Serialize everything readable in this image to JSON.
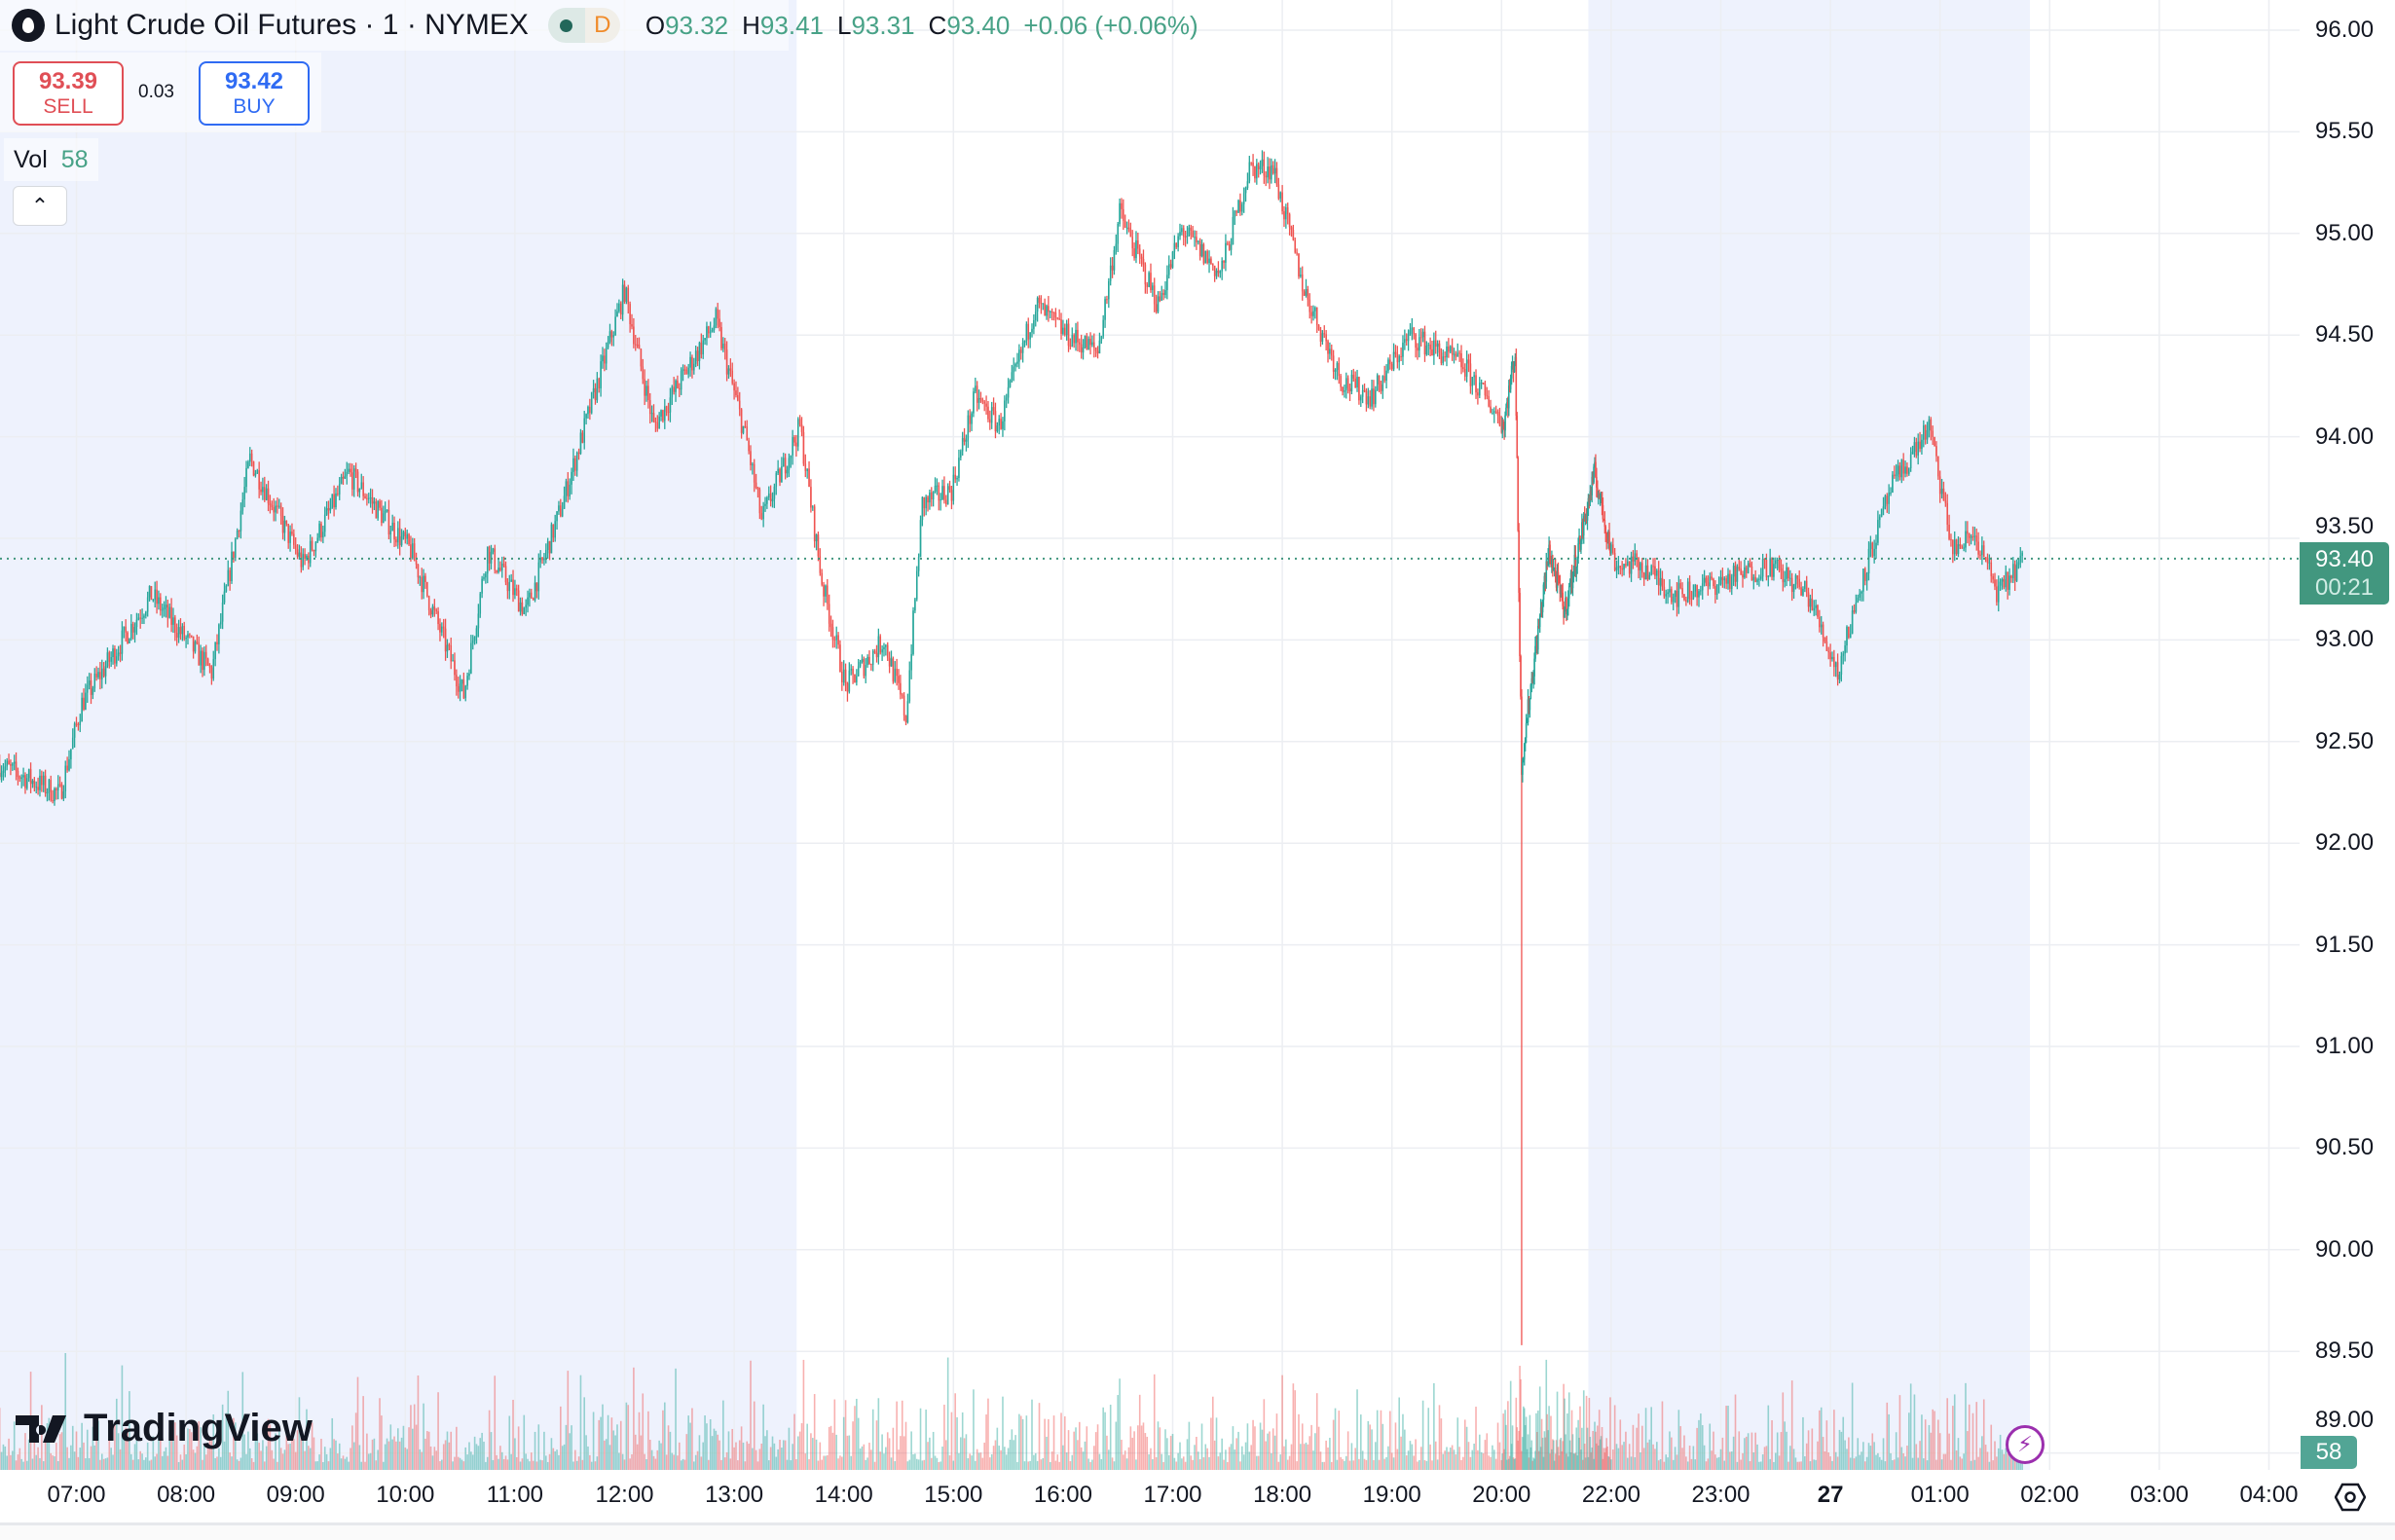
{
  "header": {
    "symbol_title": "Light Crude Oil Futures · 1 · NYMEX",
    "status_letter": "D",
    "ohlc": {
      "o_label": "O",
      "o": "93.32",
      "h_label": "H",
      "h": "93.41",
      "l_label": "L",
      "l": "93.31",
      "c_label": "C",
      "c": "93.40",
      "change": "+0.06 (+0.06%)"
    }
  },
  "trade": {
    "sell_price": "93.39",
    "sell_label": "SELL",
    "spread": "0.03",
    "buy_price": "93.42",
    "buy_label": "BUY"
  },
  "volume_legend": {
    "label": "Vol",
    "value": "58"
  },
  "collapse_icon": "chevron-up-icon",
  "price_axis": [
    "96.00",
    "95.50",
    "95.00",
    "94.50",
    "94.00",
    "93.50",
    "93.00",
    "92.50",
    "92.00",
    "91.50",
    "91.00",
    "90.50",
    "90.00",
    "89.50",
    "89.00"
  ],
  "time_axis": [
    "07:00",
    "08:00",
    "09:00",
    "10:00",
    "11:00",
    "12:00",
    "13:00",
    "14:00",
    "15:00",
    "16:00",
    "17:00",
    "18:00",
    "19:00",
    "20:00",
    "22:00",
    "23:00",
    "27",
    "01:00",
    "02:00",
    "03:00",
    "04:00"
  ],
  "last_price": {
    "price": "93.40",
    "countdown": "00:21"
  },
  "last_volume": "58",
  "branding": "TradingView",
  "colors": {
    "up": "#26a69a",
    "down": "#ef5350",
    "session_shade": "#eef2fd",
    "last_price": "#42977f"
  },
  "chart_data": {
    "type": "candlestick",
    "interval": "1 minute",
    "ylim": [
      89.0,
      96.0
    ],
    "grid": true,
    "path": [
      [
        "06:18",
        92.39
      ],
      [
        "06:52",
        92.24
      ],
      [
        "07:04",
        92.69
      ],
      [
        "07:42",
        93.22
      ],
      [
        "08:15",
        92.84
      ],
      [
        "08:36",
        93.89
      ],
      [
        "09:05",
        93.37
      ],
      [
        "09:30",
        93.82
      ],
      [
        "10:04",
        93.44
      ],
      [
        "10:33",
        92.73
      ],
      [
        "10:46",
        93.44
      ],
      [
        "11:07",
        93.14
      ],
      [
        "11:27",
        93.67
      ],
      [
        "12:01",
        94.72
      ],
      [
        "12:17",
        94.05
      ],
      [
        "12:51",
        94.57
      ],
      [
        "13:08",
        93.97
      ],
      [
        "13:16",
        93.59
      ],
      [
        "13:37",
        94.05
      ],
      [
        "13:49",
        93.29
      ],
      [
        "14:02",
        92.77
      ],
      [
        "14:23",
        93.0
      ],
      [
        "14:35",
        92.62
      ],
      [
        "14:44",
        93.67
      ],
      [
        "15:00",
        93.74
      ],
      [
        "15:13",
        94.2
      ],
      [
        "15:26",
        94.05
      ],
      [
        "15:46",
        94.65
      ],
      [
        "16:03",
        94.5
      ],
      [
        "16:20",
        94.42
      ],
      [
        "16:32",
        95.1
      ],
      [
        "16:53",
        94.65
      ],
      [
        "17:06",
        95.02
      ],
      [
        "17:27",
        94.8
      ],
      [
        "17:43",
        95.32
      ],
      [
        "17:56",
        95.32
      ],
      [
        "18:13",
        94.72
      ],
      [
        "18:34",
        94.27
      ],
      [
        "18:50",
        94.2
      ],
      [
        "19:11",
        94.5
      ],
      [
        "19:40",
        94.35
      ],
      [
        "20:03",
        94.05
      ],
      [
        "20:16",
        94.42
      ],
      [
        "20:23",
        92.39
      ],
      [
        "20:33",
        92.77
      ],
      [
        "20:53",
        93.44
      ],
      [
        "21:10",
        93.14
      ],
      [
        "21:43",
        93.82
      ],
      [
        "22:04",
        93.37
      ],
      [
        "22:17",
        93.37
      ],
      [
        "22:37",
        93.22
      ],
      [
        "23:02",
        93.29
      ],
      [
        "23:28",
        93.37
      ],
      [
        "23:49",
        93.22
      ],
      [
        "00:05",
        92.84
      ],
      [
        "00:18",
        93.29
      ],
      [
        "00:34",
        93.74
      ],
      [
        "00:55",
        94.05
      ],
      [
        "01:08",
        93.44
      ],
      [
        "01:20",
        93.52
      ],
      [
        "01:33",
        93.22
      ],
      [
        "01:46",
        93.4
      ]
    ],
    "extreme_lows": [
      [
        "20:22",
        89.53
      ]
    ],
    "sessions_shaded": [
      [
        "06:18",
        "13:31"
      ],
      [
        "21:35",
        "01:46"
      ]
    ]
  }
}
